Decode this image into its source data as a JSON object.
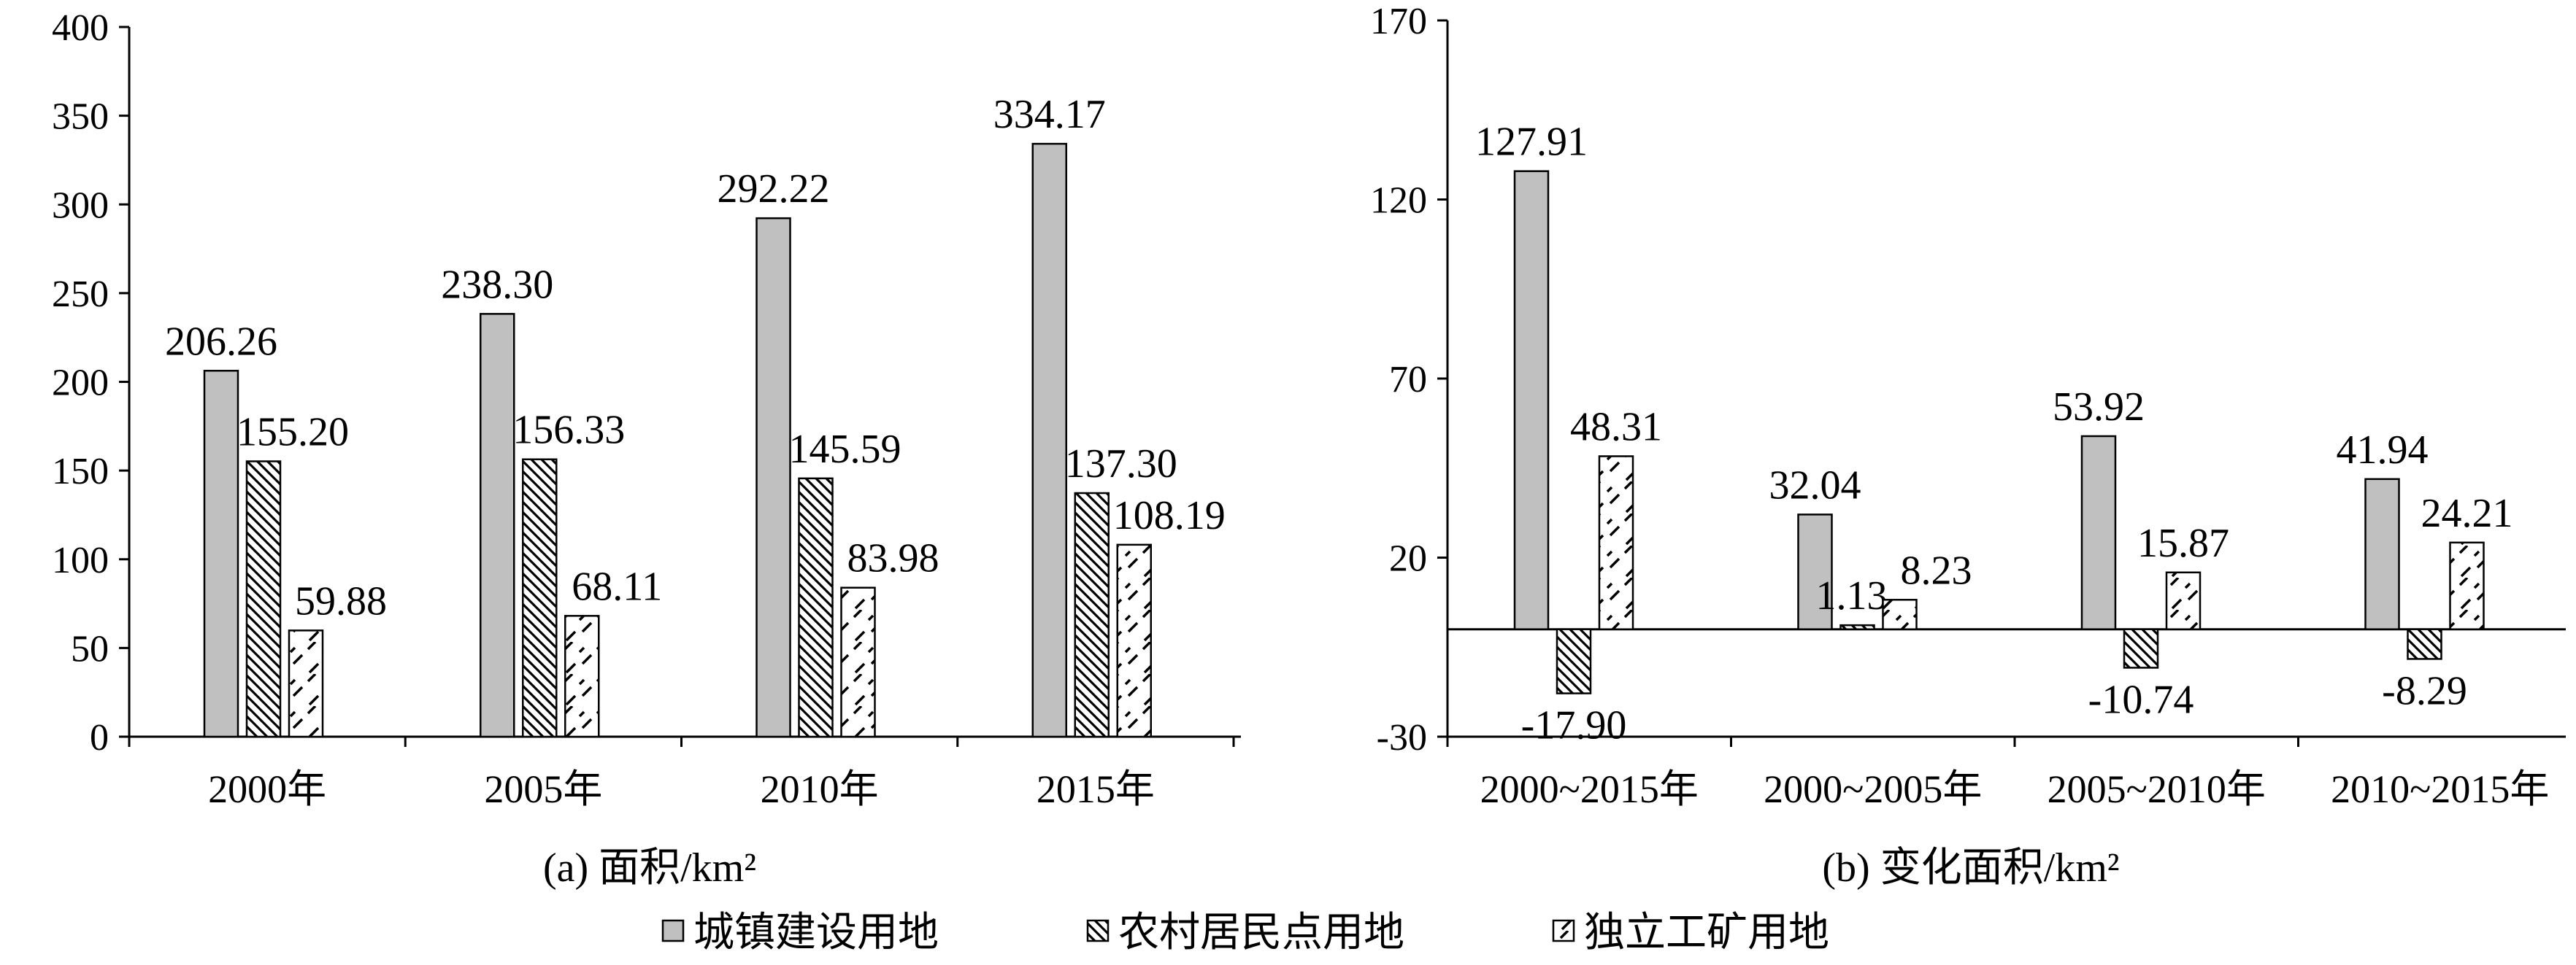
{
  "legend": [
    {
      "name": "城镇建设用地",
      "pattern": "solid"
    },
    {
      "name": "农村居民点用地",
      "pattern": "diag"
    },
    {
      "name": "独立工矿用地",
      "pattern": "dash"
    }
  ],
  "colors": {
    "solid_fill": "#c0c0c0",
    "pattern_ink": "#000000",
    "axis": "#000000",
    "background": "#ffffff"
  },
  "chart_data": [
    {
      "type": "bar",
      "title": "(a) 面积/km²",
      "xlabel": "",
      "ylabel": "",
      "categories": [
        "2000年",
        "2005年",
        "2010年",
        "2015年"
      ],
      "ylim": [
        0,
        400
      ],
      "yticks": [
        0,
        50,
        100,
        150,
        200,
        250,
        300,
        350,
        400
      ],
      "grid": false,
      "series": [
        {
          "name": "城镇建设用地",
          "values": [
            206.26,
            238.3,
            292.22,
            334.17
          ],
          "labels": [
            "206.26",
            "238.30",
            "292.22",
            "334.17"
          ]
        },
        {
          "name": "农村居民点用地",
          "values": [
            155.2,
            156.33,
            145.59,
            137.3
          ],
          "labels": [
            "155.20",
            "156.33",
            "145.59",
            "137.30"
          ]
        },
        {
          "name": "独立工矿用地",
          "values": [
            59.88,
            68.11,
            83.98,
            108.19
          ],
          "labels": [
            "59.88",
            "68.11",
            "83.98",
            "108.19"
          ]
        }
      ]
    },
    {
      "type": "bar",
      "title": "(b) 变化面积/km²",
      "xlabel": "",
      "ylabel": "",
      "categories": [
        "2000~2015年",
        "2000~2005年",
        "2005~2010年",
        "2010~2015年"
      ],
      "ylim": [
        -30,
        170
      ],
      "yticks": [
        -30,
        20,
        70,
        120,
        170
      ],
      "grid": false,
      "series": [
        {
          "name": "城镇建设用地",
          "values": [
            127.91,
            32.04,
            53.92,
            41.94
          ],
          "labels": [
            "127.91",
            "32.04",
            "53.92",
            "41.94"
          ]
        },
        {
          "name": "农村居民点用地",
          "values": [
            -17.9,
            1.13,
            -10.74,
            -8.29
          ],
          "labels": [
            "-17.90",
            "1.13",
            "-10.74",
            "-8.29"
          ]
        },
        {
          "name": "独立工矿用地",
          "values": [
            48.31,
            8.23,
            15.87,
            24.21
          ],
          "labels": [
            "48.31",
            "8.23",
            "15.87",
            "24.21"
          ]
        }
      ]
    }
  ]
}
